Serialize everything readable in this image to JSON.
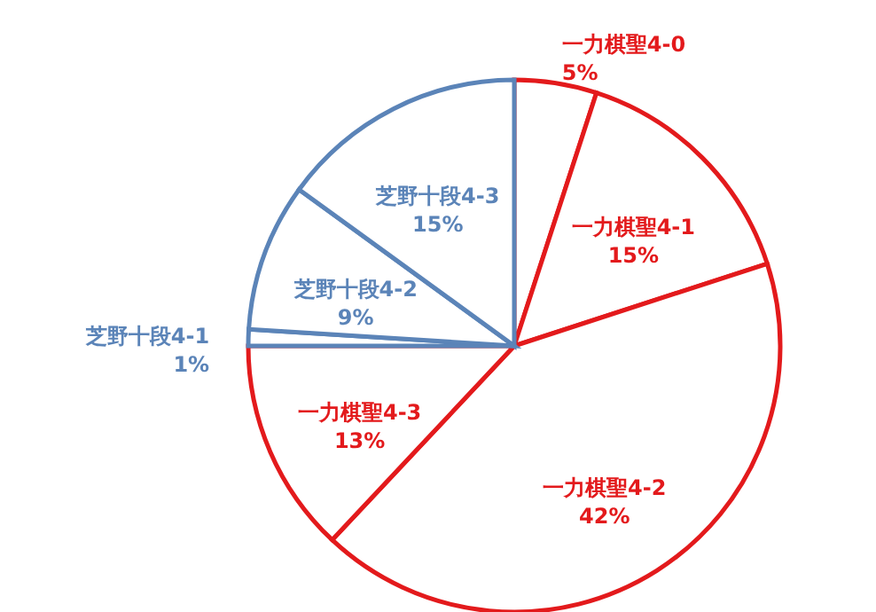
{
  "chart_data": {
    "type": "pie",
    "categories": [
      "一力棋聖4-0",
      "一力棋聖4-1",
      "一力棋聖4-2",
      "一力棋聖4-3",
      "芝野十段4-1",
      "芝野十段4-2",
      "芝野十段4-3"
    ],
    "values": [
      5,
      15,
      42,
      13,
      1,
      9,
      15
    ],
    "colors": [
      "#e31a1c",
      "#e31a1c",
      "#e31a1c",
      "#e31a1c",
      "#5b84b8",
      "#5b84b8",
      "#5b84b8"
    ],
    "value_labels": [
      "5%",
      "15%",
      "42%",
      "13%",
      "1%",
      "9%",
      "15%"
    ],
    "legend": false
  }
}
